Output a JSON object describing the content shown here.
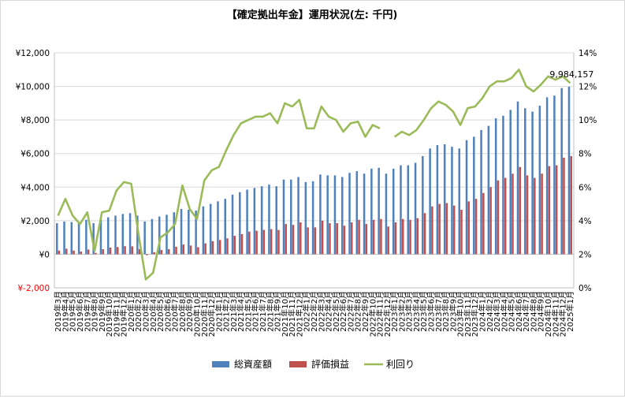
{
  "chart_data": {
    "type": "bar",
    "title": "【確定拠出年金】運用状況(左: 千円)",
    "xlabel": "",
    "ylabel": "",
    "y_left": {
      "min": -2000,
      "max": 12000,
      "step": 2000,
      "ticks": [
        "-2,000",
        "¥0",
        "¥2,000",
        "¥4,000",
        "¥6,000",
        "¥8,000",
        "¥10,000",
        "¥12,000"
      ],
      "negative_color": "#ff0000"
    },
    "y_right": {
      "min": 0,
      "max": 14,
      "step": 2,
      "ticks": [
        "0%",
        "2%",
        "4%",
        "6%",
        "8%",
        "10%",
        "12%",
        "14%"
      ]
    },
    "grid": true,
    "legend": "bottom",
    "colors": {
      "total": "#4f81bd",
      "gain": "#c0504d",
      "yield": "#9bbb59"
    },
    "annotation": {
      "text": "9,984,157",
      "series": "総資産額",
      "index": 70
    },
    "categories": [
      "2019年3月",
      "2019年4月",
      "2019年5月",
      "2019年6月",
      "2019年7月",
      "2019年8月",
      "2019年9月",
      "2019年10月",
      "2019年11月",
      "2019年12月",
      "2020年1月",
      "2020年2月",
      "2020年3月",
      "2020年4月",
      "2020年5月",
      "2020年6月",
      "2020年7月",
      "2020年8月",
      "2020年9月",
      "2020年10月",
      "2020年11月",
      "2020年12月",
      "2021年1月",
      "2021年2月",
      "2021年3月",
      "2021年4月",
      "2021年5月",
      "2021年6月",
      "2021年7月",
      "2021年8月",
      "2021年9月",
      "2021年10月",
      "2021年11月",
      "2021年12月",
      "2022年1月",
      "2022年2月",
      "2022年3月",
      "2022年4月",
      "2022年5月",
      "2022年6月",
      "2022年7月",
      "2022年8月",
      "2022年9月",
      "2022年10月",
      "2022年11月",
      "2022年12月",
      "2023年1月",
      "2023年2月",
      "2023年3月",
      "2023年4月",
      "2023年5月",
      "2023年6月",
      "2023年7月",
      "2023年8月",
      "2023年9月",
      "2023年10月",
      "2023年11月",
      "2023年12月",
      "2024年1月",
      "2024年2月",
      "2024年3月",
      "2024年4月",
      "2024年5月",
      "2024年6月",
      "2024年7月",
      "2024年8月",
      "2024年9月",
      "2024年10月",
      "2024年11月",
      "2024年12月",
      "2025年1月"
    ],
    "series": [
      {
        "name": "総資産額",
        "type": "bar",
        "axis": "left",
        "values": [
          1850,
          1950,
          1920,
          1900,
          2050,
          1850,
          2100,
          2200,
          2300,
          2400,
          2450,
          2300,
          1950,
          2100,
          2250,
          2350,
          2500,
          2700,
          2650,
          2600,
          2850,
          3000,
          3150,
          3300,
          3550,
          3700,
          3850,
          3950,
          4050,
          4150,
          4050,
          4450,
          4450,
          4600,
          4300,
          4350,
          4750,
          4700,
          4700,
          4600,
          4850,
          4950,
          4800,
          5100,
          5150,
          4800,
          5100,
          5300,
          5300,
          5450,
          5850,
          6300,
          6500,
          6550,
          6400,
          6300,
          6800,
          7000,
          7400,
          7650,
          8100,
          8250,
          8600,
          9100,
          8700,
          8500,
          8850,
          9350,
          9450,
          9900,
          9984
        ]
      },
      {
        "name": "評価損益",
        "type": "bar",
        "axis": "left",
        "values": [
          220,
          330,
          220,
          160,
          280,
          80,
          300,
          400,
          430,
          480,
          470,
          310,
          -60,
          120,
          250,
          300,
          450,
          580,
          520,
          420,
          650,
          780,
          850,
          950,
          1100,
          1200,
          1350,
          1400,
          1450,
          1500,
          1450,
          1800,
          1750,
          1900,
          1600,
          1600,
          2000,
          1850,
          1850,
          1700,
          1900,
          2050,
          1800,
          2050,
          2100,
          1650,
          1900,
          2100,
          2050,
          2150,
          2450,
          2850,
          3000,
          3050,
          2900,
          2650,
          3150,
          3300,
          3650,
          4000,
          4400,
          4550,
          4800,
          5200,
          4700,
          4550,
          4800,
          5250,
          5300,
          5750,
          5850
        ]
      },
      {
        "name": "利回り",
        "type": "line",
        "axis": "right",
        "values": [
          4.3,
          5.3,
          4.3,
          3.8,
          4.5,
          2.2,
          4.5,
          4.6,
          5.8,
          6.3,
          6.2,
          3.2,
          0.5,
          0.9,
          3.0,
          3.3,
          3.8,
          6.1,
          4.7,
          4.1,
          6.4,
          7.0,
          7.2,
          8.2,
          9.1,
          9.8,
          10.0,
          10.2,
          10.2,
          10.4,
          9.8,
          11.0,
          10.8,
          11.2,
          9.5,
          9.5,
          10.8,
          10.2,
          10.0,
          9.3,
          9.8,
          9.9,
          9.0,
          9.7,
          9.5,
          null,
          9.0,
          9.3,
          9.1,
          9.4,
          10.0,
          10.7,
          11.1,
          10.9,
          10.5,
          9.7,
          10.7,
          10.8,
          11.3,
          12.0,
          12.3,
          12.3,
          12.5,
          13.0,
          12.0,
          11.7,
          12.1,
          12.6,
          12.4,
          12.6,
          12.2
        ]
      }
    ]
  }
}
